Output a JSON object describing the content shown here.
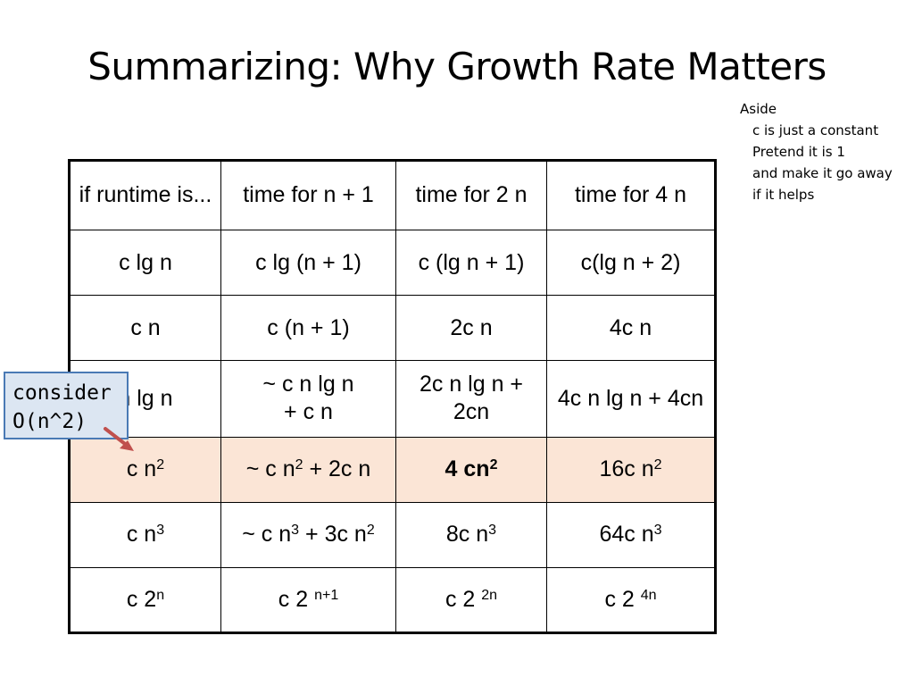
{
  "slide": {
    "title": "Summarizing: Why Growth Rate Matters"
  },
  "aside": {
    "heading": "Aside",
    "lines": [
      "c is just a constant",
      "Pretend it is 1",
      "and make it go away",
      "if it helps"
    ]
  },
  "callout": {
    "line1": "consider",
    "line2": "O(n^2)"
  },
  "table": {
    "headers": [
      "if runtime is...",
      "time for n + 1",
      "time for 2 n",
      "time for 4 n"
    ],
    "rows": [
      [
        "c lg n",
        "c lg (n + 1)",
        "c (lg n + 1)",
        "c(lg n + 2)"
      ],
      [
        "c n",
        "c (n + 1)",
        "2c n",
        "4c n"
      ],
      [
        "n lg n",
        "~ c n lg n",
        "+  c n",
        "2c n lg n + 2cn",
        "4c n lg n + 4cn"
      ],
      [
        "c n",
        "2",
        "~ c n",
        "2",
        " + 2c n",
        "4 cn",
        "2",
        "16c n",
        "2"
      ],
      [
        "c n",
        "3",
        "~ c n",
        "3",
        " + 3c n",
        "2",
        "8c n",
        "3",
        "64c n",
        "3"
      ],
      [
        "c 2",
        "n",
        "c 2 ",
        "n+1",
        "c 2 ",
        "2n",
        "c 2 ",
        "4n"
      ]
    ]
  }
}
